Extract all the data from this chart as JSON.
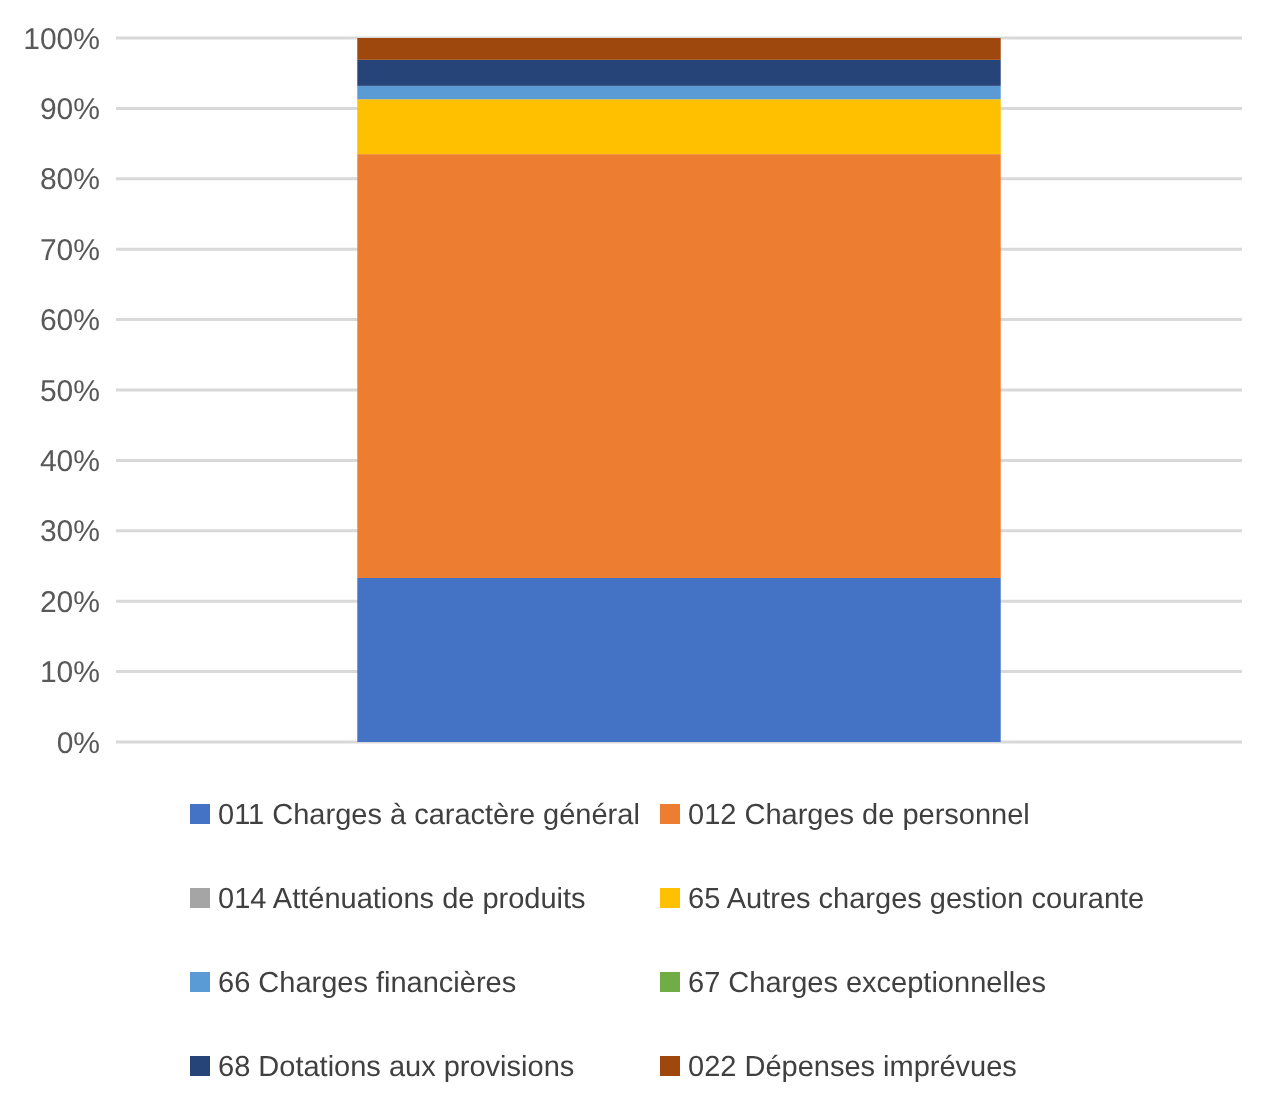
{
  "chart_data": {
    "type": "bar",
    "stacked": true,
    "categories": [
      null
    ],
    "series": [
      {
        "name": "011 Charges à caractère général",
        "color": "#4472c4",
        "values": [
          23.3
        ]
      },
      {
        "name": "012 Charges de personnel",
        "color": "#ed7d31",
        "values": [
          60.2
        ]
      },
      {
        "name": "014 Atténuations de produits",
        "color": "#a5a5a5",
        "values": [
          0
        ]
      },
      {
        "name": "65 Autres charges gestion courante",
        "color": "#ffc000",
        "values": [
          7.8
        ]
      },
      {
        "name": "66 Charges financières",
        "color": "#5b9bd5",
        "values": [
          1.9
        ]
      },
      {
        "name": "67 Charges exceptionnelles",
        "color": "#70ad47",
        "values": [
          0
        ]
      },
      {
        "name": "68 Dotations aux provisions",
        "color": "#264478",
        "values": [
          3.7
        ]
      },
      {
        "name": "022 Dépenses imprévues",
        "color": "#9e480e",
        "values": [
          3.1
        ]
      }
    ],
    "ylim": [
      0,
      100
    ],
    "yticks": [
      {
        "value": 0,
        "label": "0%"
      },
      {
        "value": 10,
        "label": "10%"
      },
      {
        "value": 20,
        "label": "20%"
      },
      {
        "value": 30,
        "label": "30%"
      },
      {
        "value": 40,
        "label": "40%"
      },
      {
        "value": 50,
        "label": "50%"
      },
      {
        "value": 60,
        "label": "60%"
      },
      {
        "value": 70,
        "label": "70%"
      },
      {
        "value": 80,
        "label": "80%"
      },
      {
        "value": 90,
        "label": "90%"
      },
      {
        "value": 100,
        "label": "100%"
      }
    ],
    "grid": "y",
    "legend": "bottom"
  }
}
